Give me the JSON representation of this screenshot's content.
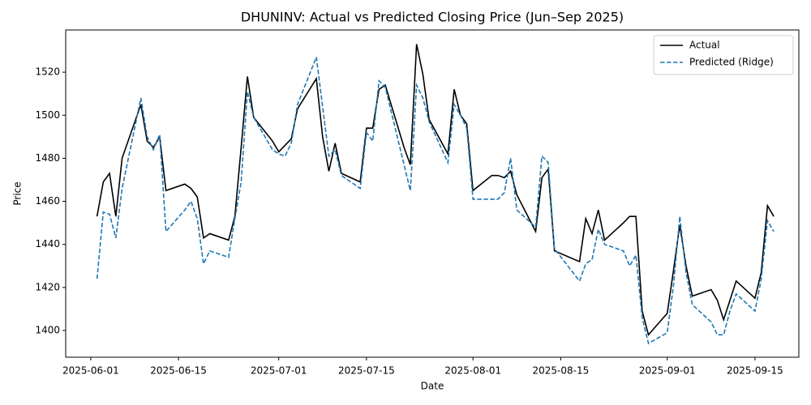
{
  "chart_data": {
    "type": "line",
    "title": "DHUNINV: Actual vs Predicted Closing Price (Jun–Sep 2025)",
    "x_label": "Date",
    "y_label": "Price",
    "x": [
      "2025-06-02",
      "2025-06-03",
      "2025-06-04",
      "2025-06-05",
      "2025-06-06",
      "2025-06-09",
      "2025-06-10",
      "2025-06-11",
      "2025-06-12",
      "2025-06-13",
      "2025-06-16",
      "2025-06-17",
      "2025-06-18",
      "2025-06-19",
      "2025-06-20",
      "2025-06-23",
      "2025-06-24",
      "2025-06-25",
      "2025-06-26",
      "2025-06-27",
      "2025-06-30",
      "2025-07-01",
      "2025-07-02",
      "2025-07-03",
      "2025-07-04",
      "2025-07-07",
      "2025-07-08",
      "2025-07-09",
      "2025-07-10",
      "2025-07-11",
      "2025-07-14",
      "2025-07-15",
      "2025-07-16",
      "2025-07-17",
      "2025-07-18",
      "2025-07-21",
      "2025-07-22",
      "2025-07-23",
      "2025-07-24",
      "2025-07-25",
      "2025-07-28",
      "2025-07-29",
      "2025-07-30",
      "2025-07-31",
      "2025-08-01",
      "2025-08-04",
      "2025-08-05",
      "2025-08-06",
      "2025-08-07",
      "2025-08-08",
      "2025-08-11",
      "2025-08-12",
      "2025-08-13",
      "2025-08-14",
      "2025-08-18",
      "2025-08-19",
      "2025-08-20",
      "2025-08-21",
      "2025-08-22",
      "2025-08-25",
      "2025-08-26",
      "2025-08-27",
      "2025-08-28",
      "2025-08-29",
      "2025-09-01",
      "2025-09-02",
      "2025-09-03",
      "2025-09-04",
      "2025-09-05",
      "2025-09-08",
      "2025-09-09",
      "2025-09-10",
      "2025-09-11",
      "2025-09-12",
      "2025-09-15",
      "2025-09-16",
      "2025-09-17",
      "2025-09-18"
    ],
    "series": [
      {
        "name": "Actual",
        "color": "#000000",
        "dash": "solid",
        "values": [
          1453,
          1469,
          1473,
          1453,
          1480,
          1505,
          1488,
          1485,
          1490,
          1465,
          1468,
          1466,
          1462,
          1443,
          1445,
          1442,
          1453,
          1485,
          1518,
          1499,
          1488,
          1483,
          1486,
          1489,
          1503,
          1517,
          1490,
          1474,
          1487,
          1473,
          1469,
          1494,
          1494,
          1512,
          1514,
          1485,
          1477,
          1533,
          1519,
          1498,
          1482,
          1512,
          1500,
          1496,
          1465,
          1472,
          1472,
          1471,
          1474,
          1463,
          1446,
          1471,
          1475,
          1437,
          1432,
          1452,
          1445,
          1456,
          1442,
          1450,
          1453,
          1453,
          1409,
          1398,
          1408,
          1428,
          1449,
          1430,
          1416,
          1419,
          1414,
          1405,
          1414,
          1423,
          1415,
          1427,
          1458,
          1453
        ]
      },
      {
        "name": "Predicted (Ridge)",
        "color": "#1f77b4",
        "dash": "dashed",
        "values": [
          1424,
          1455,
          1454,
          1443,
          1466,
          1508,
          1490,
          1484,
          1491,
          1446,
          1456,
          1460,
          1452,
          1431,
          1437,
          1434,
          1452,
          1469,
          1511,
          1499,
          1484,
          1482,
          1481,
          1487,
          1505,
          1527,
          1504,
          1481,
          1484,
          1472,
          1466,
          1492,
          1488,
          1516,
          1513,
          1477,
          1465,
          1514,
          1508,
          1497,
          1478,
          1505,
          1500,
          1494,
          1461,
          1461,
          1461,
          1464,
          1480,
          1456,
          1448,
          1481,
          1478,
          1438,
          1423,
          1431,
          1433,
          1447,
          1440,
          1437,
          1430,
          1435,
          1406,
          1394,
          1399,
          1421,
          1453,
          1427,
          1412,
          1404,
          1398,
          1398,
          1409,
          1417,
          1409,
          1424,
          1451,
          1446
        ]
      }
    ],
    "xlim": [
      "2025-05-28",
      "2025-09-22"
    ],
    "xticks": [
      "2025-06-01",
      "2025-06-15",
      "2025-07-01",
      "2025-07-15",
      "2025-08-01",
      "2025-08-15",
      "2025-09-01",
      "2025-09-15"
    ],
    "ylim": [
      1387.6,
      1539.6
    ],
    "yticks": [
      1400,
      1420,
      1440,
      1460,
      1480,
      1500,
      1520
    ],
    "grid": false,
    "legend": "upper right"
  }
}
